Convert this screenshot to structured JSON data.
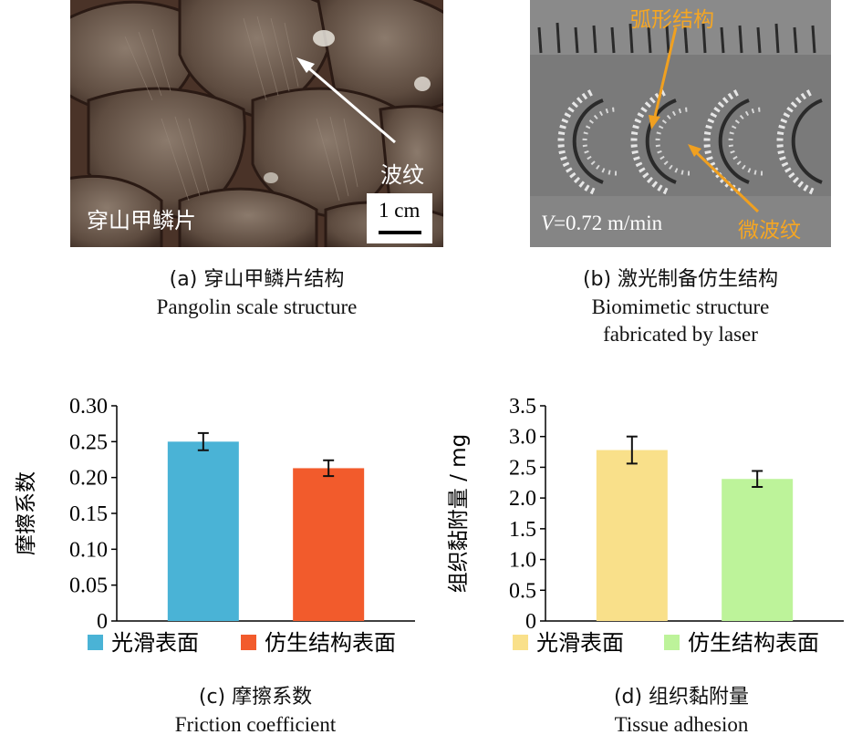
{
  "panel_a": {
    "label_left": "穿山甲鳞片",
    "label_arrow": "波纹",
    "scale_bar": "1 cm",
    "caption_cn": "(a) 穿山甲鳞片结构",
    "caption_en": "Pangolin scale structure"
  },
  "panel_b": {
    "label_top": "弧形结构",
    "label_bottom": "微波纹",
    "speed_var": "V",
    "speed_value": "=0.72 m/min",
    "caption_cn": "(b) 激光制备仿生结构",
    "caption_en_line1": "Biomimetic structure",
    "caption_en_line2": "fabricated by laser"
  },
  "chart_data": [
    {
      "type": "bar",
      "ylabel": "摩擦系数",
      "ylim": [
        0,
        0.3
      ],
      "yticks": [
        "0",
        "0.05",
        "0.10",
        "0.15",
        "0.20",
        "0.25",
        "0.30"
      ],
      "categories": [
        "光滑表面",
        "仿生结构表面"
      ],
      "values": [
        0.25,
        0.213
      ],
      "errors": [
        0.012,
        0.011
      ],
      "colors": [
        "#4ab3d6",
        "#f25b2c"
      ],
      "legend": [
        "光滑表面",
        "仿生结构表面"
      ],
      "legend_position": "bottom",
      "caption_cn": "(c) 摩擦系数",
      "caption_en": "Friction coefficient"
    },
    {
      "type": "bar",
      "ylabel": "组织黏附量 / mg",
      "ylim": [
        0,
        3.5
      ],
      "yticks": [
        "0",
        "0.5",
        "1.0",
        "1.5",
        "2.0",
        "2.5",
        "3.0",
        "3.5"
      ],
      "categories": [
        "光滑表面",
        "仿生结构表面"
      ],
      "values": [
        2.78,
        2.31
      ],
      "errors": [
        0.22,
        0.13
      ],
      "colors": [
        "#f9e08a",
        "#bdf39a"
      ],
      "legend": [
        "光滑表面",
        "仿生结构表面"
      ],
      "legend_position": "bottom",
      "caption_cn": "(d) 组织黏附量",
      "caption_en": "Tissue adhesion"
    }
  ]
}
